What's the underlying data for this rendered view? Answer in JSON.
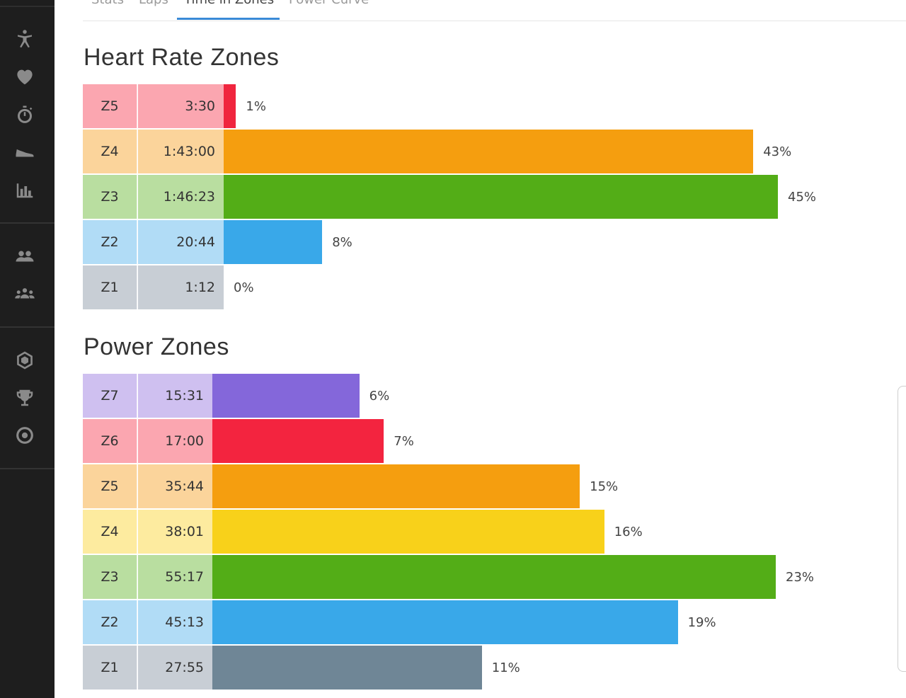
{
  "sidebar": {
    "icons": [
      {
        "name": "activity-person-icon"
      },
      {
        "name": "heart-icon"
      },
      {
        "name": "stopwatch-icon"
      },
      {
        "name": "shoe-icon"
      },
      {
        "name": "bar-chart-icon"
      },
      {
        "name": "friends-icon"
      },
      {
        "name": "group-icon"
      },
      {
        "name": "hexagon-icon"
      },
      {
        "name": "trophy-icon"
      },
      {
        "name": "target-icon"
      }
    ]
  },
  "tabs": [
    {
      "label": "Stats"
    },
    {
      "label": "Laps"
    },
    {
      "label": "Time in Zones",
      "active": true
    },
    {
      "label": "Power Curve"
    }
  ],
  "heart_rate": {
    "title": "Heart Rate Zones",
    "max_percent": 45,
    "zones": [
      {
        "zone": "Z5",
        "time": "3:30",
        "percent": 1,
        "percent_label": "1%",
        "bar_color": "#f0253e",
        "cell_color": "#fba6b0"
      },
      {
        "zone": "Z4",
        "time": "1:43:00",
        "percent": 43,
        "percent_label": "43%",
        "bar_color": "#f59e0f",
        "cell_color": "#fbd49b"
      },
      {
        "zone": "Z3",
        "time": "1:46:23",
        "percent": 45,
        "percent_label": "45%",
        "bar_color": "#53ad17",
        "cell_color": "#b9dea0"
      },
      {
        "zone": "Z2",
        "time": "20:44",
        "percent": 8,
        "percent_label": "8%",
        "bar_color": "#39a8e9",
        "cell_color": "#b1dcf6"
      },
      {
        "zone": "Z1",
        "time": "1:12",
        "percent": 0,
        "percent_label": "0%",
        "bar_color": "#6f8696",
        "cell_color": "#c8ced5"
      }
    ]
  },
  "power": {
    "title": "Power Zones",
    "max_percent": 23,
    "zones": [
      {
        "zone": "Z7",
        "time": "15:31",
        "percent": 6,
        "percent_label": "6%",
        "bar_color": "#8467da",
        "cell_color": "#cfc0f0"
      },
      {
        "zone": "Z6",
        "time": "17:00",
        "percent": 7,
        "percent_label": "7%",
        "bar_color": "#f3243f",
        "cell_color": "#fba6b0"
      },
      {
        "zone": "Z5",
        "time": "35:44",
        "percent": 15,
        "percent_label": "15%",
        "bar_color": "#f59e0f",
        "cell_color": "#fbd49b"
      },
      {
        "zone": "Z4",
        "time": "38:01",
        "percent": 16,
        "percent_label": "16%",
        "bar_color": "#f8d11a",
        "cell_color": "#fdeb9f"
      },
      {
        "zone": "Z3",
        "time": "55:17",
        "percent": 23,
        "percent_label": "23%",
        "bar_color": "#53ad17",
        "cell_color": "#b9dea0"
      },
      {
        "zone": "Z2",
        "time": "45:13",
        "percent": 19,
        "percent_label": "19%",
        "bar_color": "#39a8e9",
        "cell_color": "#b1dcf6"
      },
      {
        "zone": "Z1",
        "time": "27:55",
        "percent": 11,
        "percent_label": "11%",
        "bar_color": "#6f8696",
        "cell_color": "#c8ced5"
      }
    ]
  }
}
